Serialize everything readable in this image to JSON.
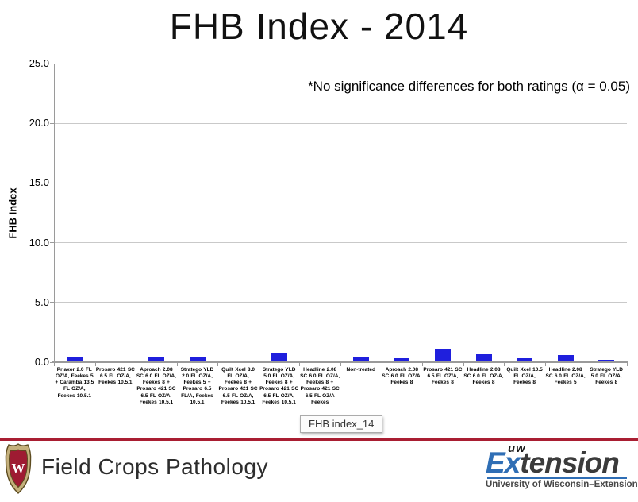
{
  "slide": {
    "title": "FHB Index - 2014",
    "annotation": "*No significance differences for both ratings (α = 0.05)",
    "tooltip_label": "FHB index_14"
  },
  "chart_data": {
    "type": "bar",
    "title": "FHB Index - 2014",
    "xlabel": "",
    "ylabel": "FHB Index",
    "ylim": [
      0,
      25
    ],
    "ytick_step": 5,
    "ytick_labels": [
      "0.0",
      "5.0",
      "10.0",
      "15.0",
      "20.0",
      "25.0"
    ],
    "grid": true,
    "legend": "none",
    "bar_color": "#1f1fdd",
    "categories": [
      "Priaxor 2.0 FL OZ/A, Feekes 5 + Caramba 13.5 FL OZ/A, Feekes 10.5.1",
      "Prosaro 421 SC 6.5 FL OZ/A, Feekes 10.5.1",
      "Aproach 2.08 SC 6.0 FL OZ/A, Feekes 8 + Prosaro 421 SC 6.5 FL OZ/A, Feekes 10.5.1",
      "Stratego YLD 2.0 FL OZ/A, Feekes 5 + Prosaro 6.5 FL/A, Feekes 10.5.1",
      "Quilt Xcel 8.0 FL OZ/A, Feekes 8 + Prosaro 421 SC 6.5 FL OZ/A, Feekes 10.5.1",
      "Stratego YLD 5.0 FL OZ/A, Feekes 8 + Prosaro 421 SC 6.5 FL OZ/A, Feekes 10.5.1",
      "Headline 2.08 SC 6.0 FL OZ/A, Feekes 8 + Prosaro 421 SC 6.5 FL OZ/A Feekes",
      "Non-treated",
      "Aproach 2.08 SC 6.0 FL OZ/A, Feekes 8",
      "Prosaro 421 SC 6.5 FL OZ/A, Feekes 8",
      "Headline 2.08 SC 6.0 FL OZ/A, Feekes 8",
      "Quilt Xcel 10.5 FL OZ/A, Feekes 8",
      "Headline 2.08 SC 6.0 FL OZ/A, Feekes 5",
      "Stratego YLD 5.0 FL OZ/A, Feekes 8"
    ],
    "values": [
      0.3,
      0.05,
      0.32,
      0.3,
      0.05,
      0.7,
      0.05,
      0.38,
      0.27,
      1.0,
      0.6,
      0.25,
      0.5,
      0.12
    ],
    "annotation": "*No significance differences for both ratings (α = 0.05)"
  },
  "footer": {
    "department": "Field Crops Pathology",
    "divider_color": "#a91e32",
    "extension": {
      "uw": "uw",
      "word_blue": "Ex",
      "word_dark": "tension",
      "subtitle": "University of Wisconsin–Extension",
      "blue": "#2f6eb5"
    }
  }
}
